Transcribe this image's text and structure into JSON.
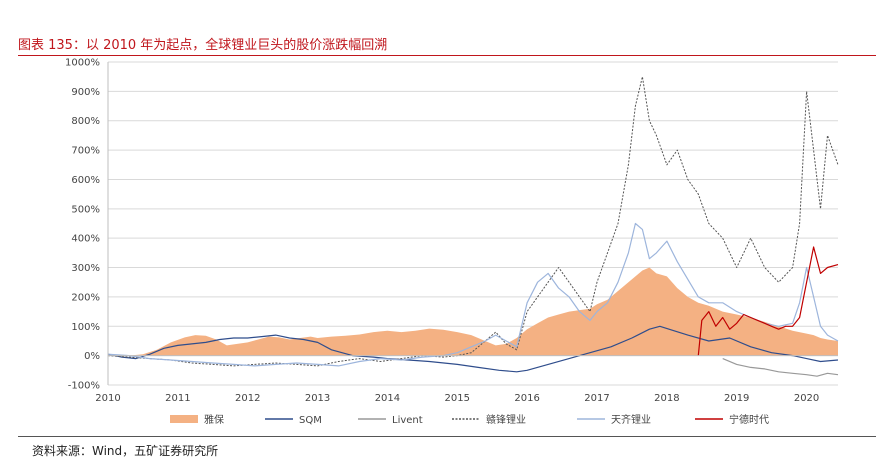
{
  "title": "图表 135：以 2010 年为起点，全球锂业巨头的股价涨跌幅回溯",
  "source": "资料来源：Wind，五矿证券研究所",
  "chart_data": {
    "type": "line",
    "title": "图表 135：以 2010 年为起点，全球锂业巨头的股价涨跌幅回溯",
    "xlabel": "",
    "ylabel": "",
    "x_ticks": [
      "2010",
      "2011",
      "2012",
      "2013",
      "2014",
      "2015",
      "2016",
      "2017",
      "2018",
      "2019",
      "2020"
    ],
    "y_ticks": [
      "1000%",
      "900%",
      "800%",
      "700%",
      "600%",
      "500%",
      "400%",
      "300%",
      "200%",
      "100%",
      "0%",
      "-100%"
    ],
    "xlim": [
      2010.0,
      2020.45
    ],
    "ylim": [
      -100,
      1000
    ],
    "grid": "horizontal",
    "legend_position": "bottom",
    "series": [
      {
        "name": "雅保",
        "style": "area",
        "color": "#f4b183",
        "x": [
          2010.0,
          2010.3,
          2010.5,
          2010.7,
          2010.9,
          2011.1,
          2011.25,
          2011.4,
          2011.55,
          2011.7,
          2011.85,
          2012.0,
          2012.15,
          2012.3,
          2012.45,
          2012.6,
          2012.75,
          2012.9,
          2013.0,
          2013.2,
          2013.4,
          2013.6,
          2013.8,
          2014.0,
          2014.2,
          2014.4,
          2014.6,
          2014.8,
          2015.0,
          2015.2,
          2015.4,
          2015.55,
          2015.7,
          2015.85,
          2016.0,
          2016.15,
          2016.3,
          2016.45,
          2016.6,
          2016.75,
          2016.9,
          2017.0,
          2017.15,
          2017.3,
          2017.45,
          2017.55,
          2017.65,
          2017.75,
          2017.85,
          2018.0,
          2018.15,
          2018.3,
          2018.45,
          2018.6,
          2018.8,
          2019.0,
          2019.2,
          2019.4,
          2019.6,
          2019.8,
          2020.0,
          2020.1,
          2020.2,
          2020.3,
          2020.45
        ],
        "values": [
          5,
          0,
          5,
          20,
          45,
          62,
          70,
          68,
          55,
          35,
          40,
          45,
          55,
          65,
          62,
          55,
          60,
          65,
          60,
          65,
          68,
          72,
          80,
          85,
          80,
          85,
          92,
          88,
          80,
          70,
          50,
          35,
          40,
          60,
          90,
          110,
          130,
          140,
          150,
          155,
          160,
          175,
          190,
          220,
          250,
          270,
          290,
          300,
          280,
          270,
          230,
          200,
          180,
          170,
          150,
          140,
          130,
          115,
          100,
          85,
          75,
          70,
          60,
          55,
          50
        ]
      },
      {
        "name": "SQM",
        "style": "solid",
        "color": "#2f4d8c",
        "x": [
          2010.0,
          2010.2,
          2010.4,
          2010.6,
          2010.8,
          2011.0,
          2011.2,
          2011.4,
          2011.6,
          2011.8,
          2012.0,
          2012.2,
          2012.4,
          2012.6,
          2012.8,
          2013.0,
          2013.2,
          2013.5,
          2013.8,
          2014.0,
          2014.3,
          2014.6,
          2015.0,
          2015.3,
          2015.6,
          2015.85,
          2016.0,
          2016.3,
          2016.6,
          2016.9,
          2017.2,
          2017.5,
          2017.75,
          2017.9,
          2018.1,
          2018.3,
          2018.6,
          2018.9,
          2019.2,
          2019.5,
          2019.8,
          2020.0,
          2020.2,
          2020.45
        ],
        "values": [
          5,
          -5,
          -10,
          5,
          25,
          35,
          40,
          45,
          55,
          60,
          60,
          65,
          70,
          60,
          55,
          45,
          20,
          0,
          -5,
          -10,
          -15,
          -20,
          -30,
          -40,
          -50,
          -55,
          -50,
          -30,
          -10,
          10,
          30,
          60,
          90,
          100,
          85,
          70,
          50,
          60,
          30,
          10,
          0,
          -10,
          -20,
          -15
        ]
      },
      {
        "name": "Livent",
        "style": "solid",
        "color": "#999999",
        "x": [
          2018.8,
          2019.0,
          2019.2,
          2019.4,
          2019.6,
          2019.8,
          2020.0,
          2020.15,
          2020.3,
          2020.45
        ],
        "values": [
          -10,
          -30,
          -40,
          -45,
          -55,
          -60,
          -65,
          -70,
          -60,
          -65
        ]
      },
      {
        "name": "赣锋锂业",
        "style": "dashed",
        "color": "#555555",
        "x": [
          2010.0,
          2010.3,
          2010.6,
          2010.9,
          2011.2,
          2011.5,
          2011.8,
          2012.1,
          2012.4,
          2012.7,
          2013.0,
          2013.3,
          2013.6,
          2013.9,
          2014.2,
          2014.5,
          2014.8,
          2015.0,
          2015.2,
          2015.4,
          2015.55,
          2015.7,
          2015.85,
          2016.0,
          2016.15,
          2016.3,
          2016.45,
          2016.6,
          2016.75,
          2016.9,
          2017.0,
          2017.15,
          2017.3,
          2017.45,
          2017.55,
          2017.65,
          2017.75,
          2017.85,
          2018.0,
          2018.15,
          2018.3,
          2018.45,
          2018.6,
          2018.8,
          2019.0,
          2019.2,
          2019.4,
          2019.6,
          2019.8,
          2019.9,
          2020.0,
          2020.1,
          2020.2,
          2020.3,
          2020.45
        ],
        "values": [
          0,
          -5,
          -10,
          -15,
          -25,
          -30,
          -35,
          -30,
          -25,
          -30,
          -35,
          -20,
          -10,
          -20,
          -10,
          0,
          -5,
          0,
          10,
          50,
          80,
          40,
          20,
          150,
          200,
          250,
          300,
          250,
          200,
          150,
          250,
          350,
          450,
          650,
          850,
          950,
          800,
          750,
          650,
          700,
          600,
          550,
          450,
          400,
          300,
          400,
          300,
          250,
          300,
          450,
          900,
          700,
          500,
          750,
          650
        ]
      },
      {
        "name": "天齐锂业",
        "style": "solid",
        "color": "#9db5dc",
        "x": [
          2010.0,
          2010.3,
          2010.6,
          2010.9,
          2011.2,
          2011.5,
          2011.8,
          2012.1,
          2012.4,
          2012.7,
          2013.0,
          2013.3,
          2013.6,
          2013.9,
          2014.2,
          2014.5,
          2014.8,
          2015.0,
          2015.2,
          2015.4,
          2015.55,
          2015.7,
          2015.85,
          2016.0,
          2016.15,
          2016.3,
          2016.45,
          2016.6,
          2016.75,
          2016.9,
          2017.0,
          2017.15,
          2017.3,
          2017.45,
          2017.55,
          2017.65,
          2017.75,
          2017.85,
          2018.0,
          2018.15,
          2018.3,
          2018.45,
          2018.6,
          2018.8,
          2019.0,
          2019.2,
          2019.4,
          2019.6,
          2019.8,
          2019.9,
          2020.0,
          2020.1,
          2020.2,
          2020.3,
          2020.45
        ],
        "values": [
          5,
          0,
          -10,
          -15,
          -20,
          -25,
          -30,
          -35,
          -30,
          -25,
          -30,
          -35,
          -20,
          -10,
          -15,
          -5,
          0,
          10,
          30,
          50,
          70,
          50,
          30,
          180,
          250,
          280,
          230,
          200,
          150,
          120,
          150,
          180,
          250,
          350,
          450,
          430,
          330,
          350,
          390,
          320,
          260,
          200,
          180,
          180,
          150,
          130,
          110,
          100,
          110,
          180,
          300,
          200,
          100,
          70,
          50
        ]
      },
      {
        "name": "宁德时代",
        "style": "solid",
        "color": "#c00000",
        "x": [
          2018.45,
          2018.5,
          2018.6,
          2018.7,
          2018.8,
          2018.9,
          2019.0,
          2019.1,
          2019.2,
          2019.3,
          2019.4,
          2019.5,
          2019.6,
          2019.7,
          2019.8,
          2019.9,
          2020.0,
          2020.1,
          2020.2,
          2020.3,
          2020.45
        ],
        "values": [
          0,
          120,
          150,
          100,
          130,
          90,
          110,
          140,
          130,
          120,
          110,
          100,
          90,
          100,
          100,
          130,
          250,
          370,
          280,
          300,
          310
        ]
      }
    ]
  }
}
